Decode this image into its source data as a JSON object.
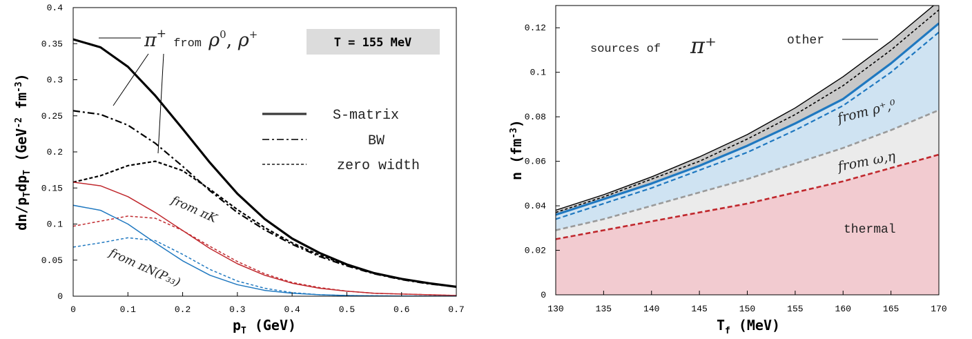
{
  "chart_data": [
    {
      "type": "line",
      "xlabel": "p_T (GeV)",
      "ylabel": "dn/p_T dp_T (GeV^-2 fm^-3)",
      "xlim": [
        0,
        0.7
      ],
      "ylim": [
        0,
        0.4
      ],
      "xticks": [
        "0",
        "0.1",
        "0.2",
        "0.3",
        "0.4",
        "0.5",
        "0.6",
        "0.7"
      ],
      "yticks": [
        "0",
        "0.05",
        "0.1",
        "0.15",
        "0.2",
        "0.25",
        "0.3",
        "0.35",
        "0.4"
      ],
      "grid": false,
      "legend_position": "right",
      "legend": [
        "S-matrix",
        "BW",
        "zero width"
      ],
      "badge": "T = 155 MeV",
      "annotations": {
        "rho_label": "π⁺ from ρ⁰, ρ⁺",
        "piK_label": "from πK",
        "piN_label": "from πN(P₃₃)"
      },
      "series": [
        {
          "name": "S-matrix",
          "group": "rho",
          "color": "#000000",
          "style": "solid",
          "x": [
            0,
            0.05,
            0.1,
            0.15,
            0.2,
            0.25,
            0.3,
            0.35,
            0.4,
            0.45,
            0.5,
            0.55,
            0.6,
            0.65,
            0.7
          ],
          "y": [
            0.356,
            0.345,
            0.318,
            0.278,
            0.232,
            0.185,
            0.142,
            0.107,
            0.08,
            0.06,
            0.044,
            0.032,
            0.024,
            0.018,
            0.013
          ]
        },
        {
          "name": "BW",
          "group": "rho",
          "color": "#000000",
          "style": "dashdot",
          "x": [
            0,
            0.05,
            0.1,
            0.15,
            0.2,
            0.25,
            0.3,
            0.35,
            0.4,
            0.45,
            0.5,
            0.55,
            0.6,
            0.65,
            0.7
          ],
          "y": [
            0.257,
            0.252,
            0.237,
            0.212,
            0.18,
            0.146,
            0.116,
            0.092,
            0.072,
            0.055,
            0.042,
            0.031,
            0.023,
            0.017,
            0.013
          ]
        },
        {
          "name": "zero width",
          "group": "rho",
          "color": "#000000",
          "style": "dashed",
          "x": [
            0,
            0.05,
            0.1,
            0.15,
            0.2,
            0.25,
            0.3,
            0.35,
            0.4,
            0.45,
            0.5,
            0.55,
            0.6,
            0.65,
            0.7
          ],
          "y": [
            0.158,
            0.167,
            0.181,
            0.187,
            0.174,
            0.148,
            0.12,
            0.095,
            0.074,
            0.057,
            0.043,
            0.032,
            0.024,
            0.018,
            0.013
          ]
        },
        {
          "name": "",
          "group": "piK",
          "color": "#c0282d",
          "style": "solid",
          "x": [
            0,
            0.05,
            0.1,
            0.15,
            0.2,
            0.25,
            0.3,
            0.35,
            0.4,
            0.45,
            0.5,
            0.55,
            0.6,
            0.65,
            0.7
          ],
          "y": [
            0.158,
            0.153,
            0.138,
            0.116,
            0.091,
            0.066,
            0.045,
            0.029,
            0.018,
            0.011,
            0.007,
            0.004,
            0.003,
            0.002,
            0.001
          ]
        },
        {
          "name": "",
          "group": "piK",
          "color": "#c0282d",
          "style": "dashed",
          "x": [
            0,
            0.05,
            0.1,
            0.15,
            0.2,
            0.25,
            0.3,
            0.35,
            0.4,
            0.45,
            0.5,
            0.55,
            0.6,
            0.65,
            0.7
          ],
          "y": [
            0.097,
            0.104,
            0.111,
            0.108,
            0.091,
            0.069,
            0.048,
            0.031,
            0.019,
            0.012,
            0.007,
            0.004,
            0.003,
            0.002,
            0.001
          ]
        },
        {
          "name": "",
          "group": "piN",
          "color": "#1f78c0",
          "style": "solid",
          "x": [
            0,
            0.05,
            0.1,
            0.15,
            0.2,
            0.25,
            0.3,
            0.35,
            0.4,
            0.45,
            0.5,
            0.55,
            0.6,
            0.65,
            0.7
          ],
          "y": [
            0.126,
            0.119,
            0.1,
            0.074,
            0.049,
            0.029,
            0.016,
            0.008,
            0.004,
            0.002,
            0.001,
            0.0005,
            0.0002,
            0.0001,
            0
          ]
        },
        {
          "name": "",
          "group": "piN",
          "color": "#1f78c0",
          "style": "dashed",
          "x": [
            0,
            0.05,
            0.1,
            0.15,
            0.2,
            0.25,
            0.3,
            0.35,
            0.4,
            0.45,
            0.5,
            0.55,
            0.6,
            0.65,
            0.7
          ],
          "y": [
            0.068,
            0.074,
            0.081,
            0.077,
            0.058,
            0.037,
            0.021,
            0.011,
            0.005,
            0.002,
            0.001,
            0.0005,
            0.0002,
            0.0001,
            0
          ]
        }
      ]
    },
    {
      "type": "area",
      "xlabel": "T_f (MeV)",
      "ylabel": "n (fm^-3)",
      "xlim": [
        130,
        170
      ],
      "ylim": [
        0,
        0.13
      ],
      "xticks": [
        "130",
        "135",
        "140",
        "145",
        "150",
        "155",
        "160",
        "165",
        "170"
      ],
      "yticks": [
        "0",
        "0.02",
        "0.04",
        "0.06",
        "0.08",
        "0.1",
        "0.12"
      ],
      "grid": false,
      "annotations": {
        "sources_label": "sources of",
        "sources_symbol": "π⁺",
        "other_label": "other",
        "rho_label": "from ρ⁺,⁰",
        "omega_label": "from ω,η",
        "thermal_label": "thermal"
      },
      "x": [
        130,
        135,
        140,
        145,
        150,
        155,
        160,
        165,
        170
      ],
      "bands": [
        {
          "name": "thermal",
          "color": "#f2cbd0",
          "upper": [
            0.025,
            0.029,
            0.033,
            0.037,
            0.041,
            0.046,
            0.051,
            0.057,
            0.063
          ]
        },
        {
          "name": "from ω,η",
          "color": "#ebebeb",
          "upper": [
            0.029,
            0.034,
            0.04,
            0.046,
            0.052,
            0.059,
            0.066,
            0.074,
            0.083
          ]
        },
        {
          "name": "from ρ⁺,⁰",
          "color": "#cfe3f2",
          "upper": [
            0.036,
            0.043,
            0.05,
            0.058,
            0.067,
            0.077,
            0.088,
            0.104,
            0.122
          ]
        },
        {
          "name": "other",
          "color": "#c8c8c8",
          "upper": [
            0.038,
            0.045,
            0.053,
            0.062,
            0.072,
            0.084,
            0.098,
            0.114,
            0.132
          ]
        }
      ],
      "series": [
        {
          "name": "",
          "color": "#c0282d",
          "style": "dashed",
          "width": 2.6,
          "y": [
            0.025,
            0.029,
            0.033,
            0.037,
            0.041,
            0.046,
            0.051,
            0.057,
            0.063
          ]
        },
        {
          "name": "",
          "color": "#9a9a9a",
          "style": "dashed",
          "width": 2.6,
          "y": [
            0.029,
            0.034,
            0.04,
            0.046,
            0.052,
            0.059,
            0.066,
            0.074,
            0.083
          ]
        },
        {
          "name": "",
          "color": "#1f78c0",
          "style": "dashed",
          "width": 2.2,
          "y": [
            0.034,
            0.041,
            0.048,
            0.056,
            0.064,
            0.074,
            0.085,
            0.1,
            0.118
          ]
        },
        {
          "name": "",
          "color": "#1f78c0",
          "style": "solid",
          "width": 3.2,
          "y": [
            0.036,
            0.043,
            0.05,
            0.058,
            0.067,
            0.077,
            0.088,
            0.104,
            0.122
          ]
        },
        {
          "name": "",
          "color": "#000000",
          "style": "dashed",
          "width": 1.6,
          "y": [
            0.037,
            0.044,
            0.052,
            0.06,
            0.07,
            0.081,
            0.094,
            0.11,
            0.128
          ]
        },
        {
          "name": "",
          "color": "#000000",
          "style": "solid",
          "width": 1.4,
          "y": [
            0.038,
            0.045,
            0.053,
            0.062,
            0.072,
            0.084,
            0.098,
            0.114,
            0.132
          ]
        }
      ]
    }
  ]
}
